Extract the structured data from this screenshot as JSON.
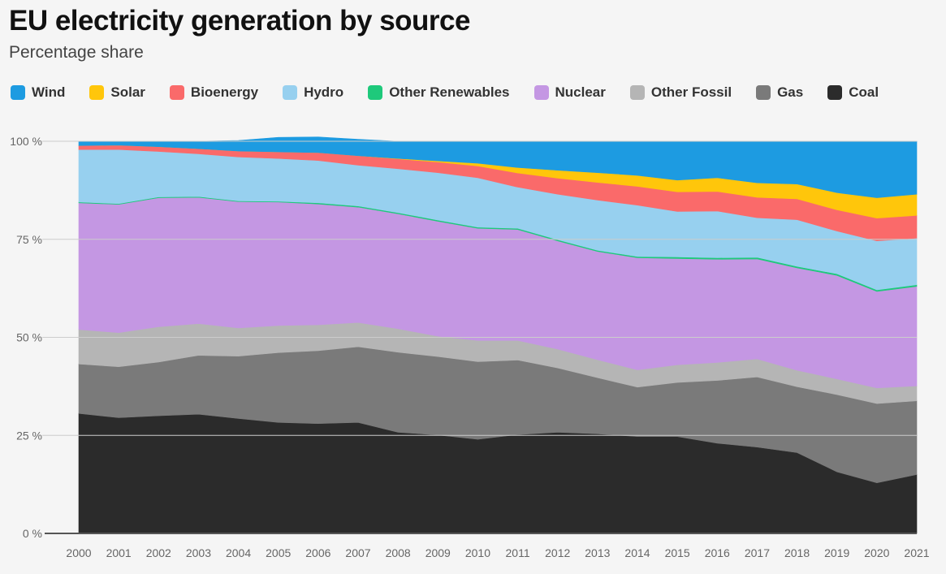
{
  "title": "EU electricity generation by source",
  "subtitle": "Percentage share",
  "chart_data": {
    "type": "area",
    "stacked": true,
    "x": [
      "2000",
      "2001",
      "2002",
      "2003",
      "2004",
      "2005",
      "2006",
      "2007",
      "2008",
      "2009",
      "2010",
      "2011",
      "2012",
      "2013",
      "2014",
      "2015",
      "2016",
      "2017",
      "2018",
      "2019",
      "2020",
      "2021"
    ],
    "ylim": [
      0,
      100
    ],
    "yticks": [
      0,
      25,
      50,
      75,
      100
    ],
    "ytick_labels": [
      "0 %",
      "25 %",
      "50 %",
      "75 %",
      "100 %"
    ],
    "legend_position": "top-left",
    "grid": true,
    "series": [
      {
        "name": "Coal",
        "color": "#2b2b2b",
        "values": [
          30.6,
          29.5,
          30.0,
          30.4,
          29.3,
          28.3,
          28.0,
          28.3,
          25.8,
          25.1,
          24.0,
          25.2,
          25.8,
          25.4,
          24.7,
          24.7,
          23.0,
          22.0,
          20.6,
          15.7,
          12.9,
          15.0
        ]
      },
      {
        "name": "Gas",
        "color": "#7a7a7a",
        "values": [
          12.6,
          13.0,
          13.7,
          15.0,
          15.9,
          17.8,
          18.6,
          19.3,
          20.4,
          20.0,
          19.8,
          19.0,
          16.4,
          14.3,
          12.6,
          13.8,
          16.0,
          17.9,
          16.8,
          19.7,
          20.2,
          18.8
        ]
      },
      {
        "name": "Other Fossil",
        "color": "#b5b5b5",
        "values": [
          8.8,
          8.7,
          9.0,
          8.1,
          7.2,
          6.9,
          6.6,
          6.2,
          6.0,
          5.2,
          5.4,
          5.0,
          4.8,
          4.6,
          4.4,
          4.5,
          4.6,
          4.6,
          4.2,
          4.0,
          4.0,
          3.8
        ]
      },
      {
        "name": "Nuclear",
        "color": "#c497e3",
        "values": [
          32.3,
          32.7,
          32.9,
          32.2,
          32.2,
          31.5,
          30.8,
          29.4,
          29.3,
          29.3,
          28.6,
          28.3,
          27.6,
          27.6,
          28.6,
          27.1,
          26.3,
          25.5,
          26.1,
          26.4,
          24.6,
          25.4
        ]
      },
      {
        "name": "Other Renewables",
        "color": "#1ec97b",
        "values": [
          0.2,
          0.2,
          0.2,
          0.2,
          0.2,
          0.2,
          0.3,
          0.3,
          0.3,
          0.3,
          0.3,
          0.3,
          0.3,
          0.3,
          0.3,
          0.4,
          0.4,
          0.4,
          0.4,
          0.4,
          0.4,
          0.4
        ]
      },
      {
        "name": "Hydro",
        "color": "#97d0ef",
        "values": [
          13.4,
          13.8,
          11.6,
          10.9,
          11.2,
          10.9,
          10.8,
          10.4,
          11.2,
          12.1,
          12.6,
          10.5,
          11.6,
          12.8,
          13.1,
          11.6,
          11.9,
          10.1,
          11.9,
          10.9,
          12.5,
          11.9
        ]
      },
      {
        "name": "Bioenergy",
        "color": "#fa6a6a",
        "values": [
          1.0,
          1.1,
          1.2,
          1.3,
          1.5,
          1.7,
          2.0,
          2.4,
          2.5,
          2.7,
          3.0,
          3.6,
          4.1,
          4.5,
          4.8,
          5.0,
          5.0,
          5.2,
          5.3,
          5.4,
          5.8,
          5.8
        ]
      },
      {
        "name": "Solar",
        "color": "#ffc60b",
        "values": [
          0.0,
          0.0,
          0.0,
          0.0,
          0.0,
          0.0,
          0.0,
          0.0,
          0.1,
          0.3,
          0.7,
          1.4,
          2.0,
          2.5,
          2.8,
          3.0,
          3.5,
          3.7,
          3.8,
          4.4,
          5.2,
          5.4
        ]
      },
      {
        "name": "Wind",
        "color": "#1d9be1",
        "values": [
          1.1,
          1.0,
          1.4,
          1.9,
          2.7,
          3.7,
          4.0,
          4.2,
          4.4,
          5.0,
          5.6,
          6.7,
          7.4,
          8.0,
          8.7,
          9.9,
          9.3,
          10.6,
          10.9,
          13.1,
          14.4,
          13.5
        ]
      }
    ],
    "legend_order": [
      "Wind",
      "Solar",
      "Bioenergy",
      "Hydro",
      "Other Renewables",
      "Nuclear",
      "Other Fossil",
      "Gas",
      "Coal"
    ]
  }
}
